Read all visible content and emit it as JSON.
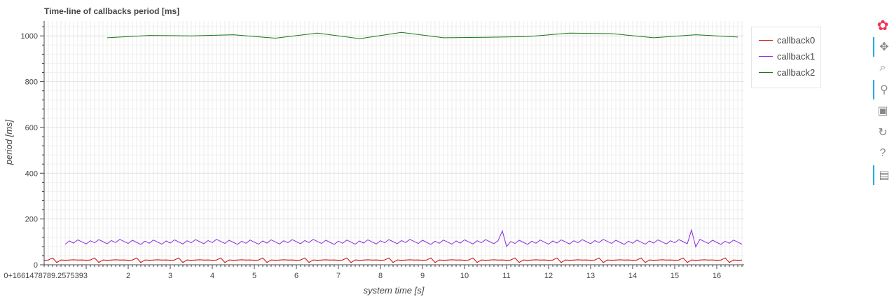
{
  "chart_data": {
    "type": "line",
    "title": "Time-line of callbacks period [ms]",
    "xlabel": "system time [s]",
    "ylabel": "period [ms]",
    "xlim": [
      0,
      16.65
    ],
    "ylim": [
      0,
      1065
    ],
    "x_ticks": [
      1,
      2,
      3,
      4,
      5,
      6,
      7,
      8,
      9,
      10,
      11,
      12,
      13,
      14,
      15,
      16
    ],
    "x_tick_labels": [
      "0+1661478789.2575393",
      "2",
      "3",
      "4",
      "5",
      "6",
      "7",
      "8",
      "9",
      "10",
      "11",
      "12",
      "13",
      "14",
      "15",
      "16"
    ],
    "y_ticks": [
      0,
      200,
      400,
      600,
      800,
      1000
    ],
    "y_tick_labels": [
      "0",
      "200",
      "400",
      "600",
      "800",
      "1000"
    ],
    "grid": true,
    "legend_position": "right",
    "series": [
      {
        "name": "callback0",
        "color": "#cc0000",
        "kind": "callback0"
      },
      {
        "name": "callback1",
        "color": "#8a2be2",
        "kind": "callback1"
      },
      {
        "name": "callback2",
        "color": "#1a7a1a",
        "x": [
          1.5,
          2.5,
          3.5,
          4.5,
          5.5,
          6.5,
          7.5,
          8.5,
          9.5,
          10.5,
          11.5,
          12.5,
          13.5,
          14.5,
          15.5,
          16.5
        ],
        "y": [
          992,
          1002,
          1000,
          1005,
          990,
          1012,
          988,
          1015,
          992,
          994,
          997,
          1012,
          1010,
          992,
          1005,
          995
        ]
      }
    ]
  },
  "toolbar": {
    "tools": [
      {
        "name": "bokeh-logo-icon",
        "glyph": "✿",
        "active": false
      },
      {
        "name": "pan-icon",
        "glyph": "✥",
        "active": true
      },
      {
        "name": "box-zoom-icon",
        "glyph": "⌕",
        "active": false
      },
      {
        "name": "wheel-zoom-icon",
        "glyph": "⚲",
        "active": true
      },
      {
        "name": "save-icon",
        "glyph": "▣",
        "active": false
      },
      {
        "name": "reset-icon",
        "glyph": "↻",
        "active": false
      },
      {
        "name": "help-icon",
        "glyph": "?",
        "active": false
      },
      {
        "name": "hover-icon",
        "glyph": "▤",
        "active": true
      }
    ]
  }
}
